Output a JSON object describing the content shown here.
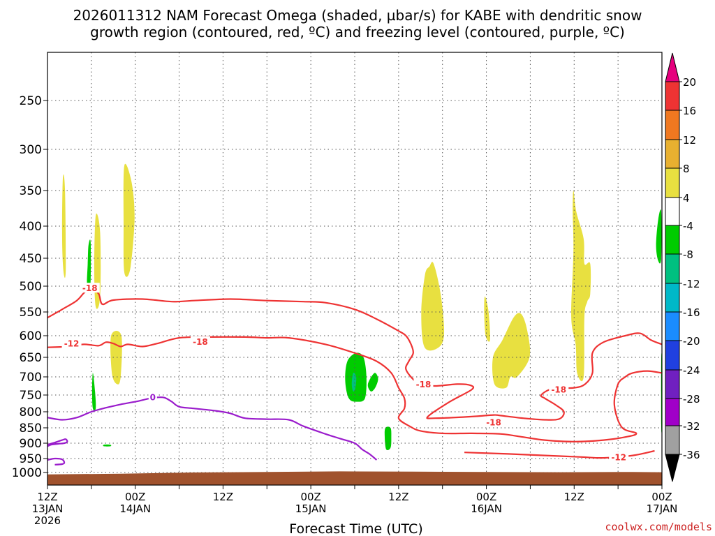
{
  "title_line1": "2026011312 NAM Forecast Omega (shaded, µbar/s) for KABE with dendritic snow",
  "title_line2": "growth region (contoured, red, ºC) and freezing level (contoured, purple, ºC)",
  "credit": "coolwx.com/models",
  "chart_data": {
    "type": "heatmap",
    "xlabel": "Forecast Time (UTC)",
    "ylabel": "",
    "x_range_hours": [
      0,
      84
    ],
    "y_range_hPa": [
      200,
      1020
    ],
    "y_axis": "pressure (inverted, log-like)",
    "grid": "dotted",
    "y_ticks": [
      250,
      300,
      350,
      400,
      450,
      500,
      550,
      600,
      650,
      700,
      750,
      800,
      850,
      900,
      950,
      1000
    ],
    "x_ticks": [
      {
        "hour": 0,
        "lines": [
          "12Z",
          "13JAN",
          "2026"
        ]
      },
      {
        "hour": 6,
        "lines": []
      },
      {
        "hour": 12,
        "lines": [
          "00Z",
          "14JAN"
        ]
      },
      {
        "hour": 18,
        "lines": []
      },
      {
        "hour": 24,
        "lines": [
          "12Z"
        ]
      },
      {
        "hour": 30,
        "lines": []
      },
      {
        "hour": 36,
        "lines": [
          "00Z",
          "15JAN"
        ]
      },
      {
        "hour": 42,
        "lines": []
      },
      {
        "hour": 48,
        "lines": [
          "12Z"
        ]
      },
      {
        "hour": 54,
        "lines": []
      },
      {
        "hour": 60,
        "lines": [
          "00Z",
          "16JAN"
        ]
      },
      {
        "hour": 66,
        "lines": []
      },
      {
        "hour": 72,
        "lines": [
          "12Z"
        ]
      },
      {
        "hour": 78,
        "lines": []
      },
      {
        "hour": 84,
        "lines": [
          "00Z",
          "17JAN"
        ]
      }
    ],
    "colorbar": {
      "labels": [
        "20",
        "16",
        "12",
        "8",
        "4",
        "-4",
        "-8",
        "-12",
        "-16",
        "-20",
        "-24",
        "-28",
        "-32",
        "-36"
      ],
      "colors": [
        "#e6007e",
        "#ee3333",
        "#f07820",
        "#e8b030",
        "#e8e040",
        "#ffffff",
        "#00cc00",
        "#00c080",
        "#00b8c8",
        "#1a8cff",
        "#2040e0",
        "#7020c0",
        "#a000c8",
        "#a0a0a0",
        "#000000"
      ]
    },
    "ground_color": "#a0522d",
    "omega_regions": [
      {
        "value": 6,
        "color": "#e8e040",
        "points": [
          [
            2.1,
            335
          ],
          [
            2.4,
            350
          ],
          [
            2.5,
            470
          ],
          [
            2.2,
            475
          ],
          [
            2.0,
            420
          ]
        ]
      },
      {
        "value": 6,
        "color": "#e8e040",
        "points": [
          [
            6.6,
            385
          ],
          [
            7.2,
            410
          ],
          [
            7.2,
            520
          ],
          [
            6.6,
            540
          ],
          [
            6.4,
            470
          ]
        ]
      },
      {
        "value": 6,
        "color": "#e8e040",
        "points": [
          [
            10.5,
            320
          ],
          [
            11.5,
            340
          ],
          [
            11.9,
            390
          ],
          [
            11.3,
            470
          ],
          [
            10.5,
            475
          ],
          [
            10.4,
            400
          ]
        ]
      },
      {
        "value": 6,
        "color": "#e8e040",
        "points": [
          [
            8.7,
            600
          ],
          [
            10.1,
            600
          ],
          [
            10.0,
            700
          ],
          [
            9.5,
            720
          ],
          [
            8.8,
            690
          ]
        ]
      },
      {
        "value": 6,
        "color": "#e8e040",
        "points": [
          [
            52.2,
            465
          ],
          [
            52.8,
            460
          ],
          [
            53.8,
            520
          ],
          [
            54.2,
            600
          ],
          [
            53.2,
            630
          ],
          [
            51.5,
            625
          ],
          [
            51.1,
            550
          ],
          [
            51.6,
            480
          ]
        ]
      },
      {
        "value": 6,
        "color": "#e8e040",
        "points": [
          [
            59.8,
            520
          ],
          [
            60.3,
            550
          ],
          [
            60.5,
            610
          ],
          [
            59.9,
            600
          ],
          [
            59.7,
            550
          ]
        ]
      },
      {
        "value": 6,
        "color": "#e8e040",
        "points": [
          [
            63.8,
            560
          ],
          [
            64.8,
            555
          ],
          [
            65.6,
            590
          ],
          [
            65.9,
            650
          ],
          [
            64.2,
            700
          ],
          [
            63.3,
            700
          ],
          [
            62.7,
            730
          ],
          [
            61.1,
            720
          ],
          [
            60.9,
            650
          ],
          [
            62.2,
            610
          ]
        ]
      },
      {
        "value": 6,
        "color": "#e8e040",
        "points": [
          [
            71.9,
            350
          ],
          [
            72.3,
            380
          ],
          [
            73.3,
            420
          ],
          [
            73.4,
            460
          ],
          [
            74.2,
            460
          ],
          [
            74.2,
            515
          ],
          [
            73.8,
            530
          ],
          [
            73.4,
            560
          ],
          [
            73.3,
            700
          ],
          [
            72.4,
            690
          ],
          [
            72.2,
            620
          ],
          [
            71.6,
            560
          ],
          [
            71.9,
            440
          ],
          [
            71.8,
            380
          ]
        ]
      },
      {
        "value": -6,
        "color": "#00cc00",
        "points": [
          [
            5.6,
            430
          ],
          [
            5.9,
            425
          ],
          [
            5.9,
            490
          ],
          [
            5.7,
            500
          ],
          [
            5.4,
            495
          ],
          [
            5.5,
            460
          ]
        ]
      },
      {
        "value": -6,
        "color": "#00cc00",
        "points": [
          [
            6.2,
            690
          ],
          [
            6.5,
            740
          ],
          [
            6.6,
            790
          ],
          [
            6.2,
            790
          ],
          [
            6.1,
            740
          ]
        ]
      },
      {
        "value": -6,
        "color": "#00cc00",
        "points": [
          [
            42.2,
            640
          ],
          [
            43.2,
            650
          ],
          [
            43.6,
            700
          ],
          [
            43.4,
            760
          ],
          [
            42.3,
            770
          ],
          [
            41.2,
            760
          ],
          [
            40.7,
            710
          ],
          [
            41.0,
            660
          ]
        ]
      },
      {
        "value": -6,
        "color": "#00cc00",
        "points": [
          [
            44.7,
            690
          ],
          [
            45.2,
            705
          ],
          [
            44.8,
            730
          ],
          [
            44.2,
            740
          ],
          [
            43.8,
            720
          ]
        ]
      },
      {
        "value": -6,
        "color": "#00cc00",
        "points": [
          [
            46.2,
            850
          ],
          [
            46.9,
            850
          ],
          [
            47.0,
            880
          ],
          [
            46.9,
            915
          ],
          [
            46.3,
            920
          ],
          [
            46.1,
            880
          ]
        ]
      },
      {
        "value": -6,
        "color": "#00cc00",
        "points": [
          [
            83.5,
            390
          ],
          [
            83.9,
            380
          ],
          [
            83.9,
            450
          ],
          [
            83.5,
            455
          ],
          [
            83.2,
            430
          ]
        ]
      },
      {
        "value": -6,
        "color": "#00cc00",
        "points": [
          [
            83.9,
            660
          ],
          [
            84.0,
            660
          ],
          [
            84.0,
            840
          ],
          [
            83.9,
            840
          ]
        ]
      },
      {
        "value": -6,
        "color": "#00cc00",
        "points": [
          [
            7.7,
            905
          ],
          [
            8.6,
            905
          ],
          [
            8.6,
            910
          ],
          [
            7.7,
            910
          ]
        ]
      },
      {
        "value": -14,
        "color": "#00c080",
        "points": [
          [
            41.8,
            690
          ],
          [
            42.2,
            700
          ],
          [
            42.1,
            730
          ],
          [
            41.8,
            740
          ],
          [
            41.6,
            720
          ]
        ]
      }
    ],
    "contours_red": [
      {
        "label": "-18",
        "label_pos": [
          5.8,
          503
        ],
        "points": [
          [
            0,
            562
          ],
          [
            2,
            545
          ],
          [
            4,
            528
          ],
          [
            5,
            513
          ],
          [
            6,
            503
          ],
          [
            7,
            515
          ],
          [
            7.5,
            535
          ],
          [
            9,
            527
          ],
          [
            13,
            525
          ],
          [
            17,
            530
          ],
          [
            20,
            528
          ],
          [
            25,
            525
          ],
          [
            30,
            528
          ],
          [
            35,
            530
          ],
          [
            38,
            532
          ],
          [
            42,
            545
          ],
          [
            45,
            565
          ],
          [
            48,
            590
          ],
          [
            49,
            600
          ],
          [
            49.7,
            620
          ],
          [
            50,
            640
          ],
          [
            49.4,
            660
          ],
          [
            49,
            680
          ],
          [
            50,
            707
          ],
          [
            51,
            720
          ],
          [
            53,
            725
          ],
          [
            56,
            720
          ],
          [
            57.8,
            723
          ],
          [
            58,
            735
          ],
          [
            55,
            770
          ],
          [
            52,
            815
          ],
          [
            53,
            820
          ],
          [
            58,
            815
          ],
          [
            61,
            810
          ],
          [
            62,
            812
          ],
          [
            65,
            820
          ],
          [
            68,
            825
          ],
          [
            70,
            822
          ],
          [
            70.6,
            800
          ],
          [
            69.5,
            780
          ],
          [
            68,
            760
          ],
          [
            67.5,
            750
          ],
          [
            69,
            733
          ],
          [
            72,
            730
          ],
          [
            73.5,
            720
          ],
          [
            74.5,
            690
          ],
          [
            74.5,
            640
          ],
          [
            76,
            615
          ],
          [
            79,
            600
          ],
          [
            81,
            595
          ],
          [
            82.5,
            610
          ],
          [
            84,
            620
          ]
        ]
      },
      {
        "label": "-12",
        "label_pos": [
          3.3,
          617
        ],
        "points": [
          [
            0,
            627
          ],
          [
            3,
            625
          ],
          [
            5,
            620
          ],
          [
            7,
            623
          ],
          [
            8,
            615
          ],
          [
            9,
            618
          ],
          [
            10,
            625
          ],
          [
            11,
            620
          ],
          [
            13,
            625
          ],
          [
            15,
            618
          ],
          [
            18,
            605
          ],
          [
            22,
            603
          ],
          [
            27,
            603
          ],
          [
            30,
            605
          ],
          [
            33,
            605
          ],
          [
            38,
            620
          ],
          [
            42,
            640
          ],
          [
            45,
            660
          ],
          [
            47,
            690
          ],
          [
            48,
            730
          ],
          [
            48.8,
            760
          ],
          [
            48.8,
            790
          ],
          [
            48,
            820
          ],
          [
            49.5,
            845
          ],
          [
            51,
            860
          ],
          [
            54,
            868
          ],
          [
            58,
            868
          ],
          [
            62,
            870
          ],
          [
            65,
            880
          ],
          [
            68,
            890
          ],
          [
            72,
            895
          ],
          [
            76,
            890
          ],
          [
            79,
            880
          ],
          [
            80.5,
            868
          ],
          [
            78.5,
            848
          ],
          [
            77.5,
            780
          ],
          [
            78,
            720
          ],
          [
            79,
            700
          ],
          [
            80,
            690
          ],
          [
            82,
            685
          ],
          [
            84,
            690
          ]
        ]
      },
      {
        "label": "-18",
        "label_pos": [
          20.9,
          613
        ],
        "points": []
      },
      {
        "label": "-18",
        "label_pos": [
          51.4,
          719
        ],
        "points": []
      },
      {
        "label": "-18",
        "label_pos": [
          61.0,
          832
        ],
        "points": []
      },
      {
        "label": "-18",
        "label_pos": [
          69.9,
          734
        ],
        "points": []
      },
      {
        "label": "-12",
        "label_pos": [
          78.1,
          944
        ],
        "points": [
          [
            57,
            930
          ],
          [
            63,
            935
          ],
          [
            68,
            940
          ],
          [
            73,
            945
          ],
          [
            76,
            948
          ],
          [
            80,
            940
          ],
          [
            83,
            925
          ]
        ]
      }
    ],
    "contours_purple": [
      {
        "label": "0",
        "label_pos": [
          14.4,
          755
        ],
        "points": [
          [
            0,
            818
          ],
          [
            2,
            825
          ],
          [
            4,
            818
          ],
          [
            6,
            800
          ],
          [
            8,
            788
          ],
          [
            10,
            778
          ],
          [
            12,
            770
          ],
          [
            14,
            760
          ],
          [
            15,
            757
          ],
          [
            16,
            758
          ],
          [
            17,
            770
          ],
          [
            18,
            785
          ],
          [
            20,
            790
          ],
          [
            23,
            797
          ],
          [
            25,
            805
          ],
          [
            27,
            820
          ],
          [
            30,
            823
          ],
          [
            33,
            825
          ],
          [
            35,
            845
          ],
          [
            38,
            870
          ],
          [
            40,
            885
          ],
          [
            42,
            900
          ],
          [
            43,
            920
          ],
          [
            44,
            935
          ],
          [
            45,
            955
          ]
        ]
      },
      {
        "label": "",
        "label_pos": [
          0,
          0
        ],
        "points": [
          [
            0,
            905
          ],
          [
            1,
            898
          ],
          [
            2,
            890
          ],
          [
            2.5,
            887
          ],
          [
            2.7,
            895
          ],
          [
            2.3,
            900
          ],
          [
            1.5,
            902
          ],
          [
            0.5,
            905
          ],
          [
            0,
            910
          ]
        ]
      },
      {
        "label": "",
        "label_pos": [
          0,
          0
        ],
        "points": [
          [
            0,
            955
          ],
          [
            1,
            950
          ],
          [
            2,
            953
          ],
          [
            2.3,
            965
          ],
          [
            2,
            970
          ],
          [
            1,
            972
          ]
        ]
      }
    ]
  }
}
